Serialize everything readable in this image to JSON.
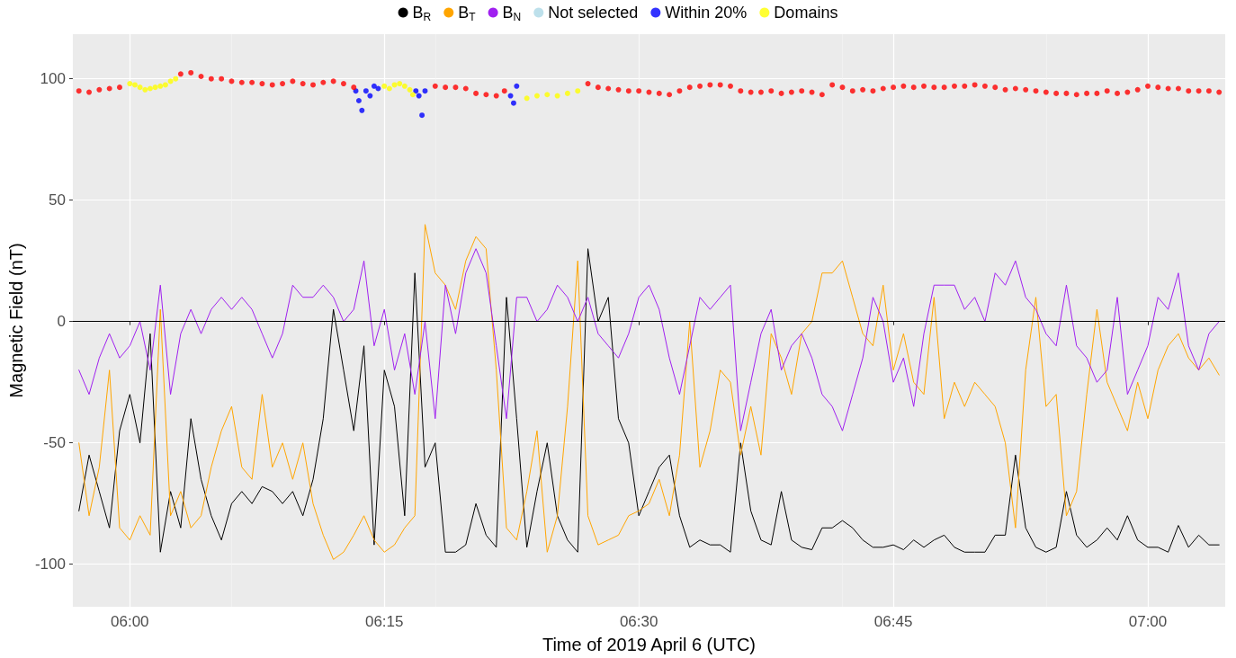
{
  "chart_data": {
    "type": "line",
    "xlabel": "Time of 2019 April 6 (UTC)",
    "ylabel": "Magnetic Field (nT)",
    "x": [
      5.95,
      5.96,
      5.97,
      5.98,
      5.99,
      6.0,
      6.01,
      6.02,
      6.03,
      6.04,
      6.05,
      6.06,
      6.07,
      6.08,
      6.09,
      6.1,
      6.11,
      6.12,
      6.13,
      6.14,
      6.15,
      6.16,
      6.17,
      6.18,
      6.19,
      6.2,
      6.21,
      6.22,
      6.23,
      6.24,
      6.25,
      6.26,
      6.27,
      6.28,
      6.29,
      6.3,
      6.31,
      6.32,
      6.33,
      6.34,
      6.35,
      6.36,
      6.37,
      6.38,
      6.39,
      6.4,
      6.41,
      6.42,
      6.43,
      6.44,
      6.45,
      6.46,
      6.47,
      6.48,
      6.49,
      6.5,
      6.51,
      6.52,
      6.53,
      6.54,
      6.55,
      6.56,
      6.57,
      6.58,
      6.59,
      6.6,
      6.61,
      6.62,
      6.63,
      6.64,
      6.65,
      6.66,
      6.67,
      6.68,
      6.69,
      6.7,
      6.71,
      6.72,
      6.73,
      6.74,
      6.75,
      6.76,
      6.77,
      6.78,
      6.79,
      6.8,
      6.81,
      6.82,
      6.83,
      6.84,
      6.85,
      6.86,
      6.87,
      6.88,
      6.89,
      6.9,
      6.91,
      6.92,
      6.93,
      6.94,
      6.95,
      6.96,
      6.97,
      6.98,
      6.99,
      7.0,
      7.01,
      7.02,
      7.03,
      7.04,
      7.05,
      7.06,
      7.07
    ],
    "series": [
      {
        "name": "B$_{R}$",
        "color": "#000000",
        "values": [
          -78,
          -55,
          -70,
          -85,
          -45,
          -30,
          -50,
          -5,
          -95,
          -70,
          -85,
          -40,
          -65,
          -80,
          -90,
          -75,
          -70,
          -75,
          -68,
          -70,
          -75,
          -70,
          -80,
          -65,
          -40,
          5,
          -20,
          -45,
          -10,
          -92,
          -20,
          -35,
          -80,
          20,
          -60,
          -50,
          -95,
          -95,
          -92,
          -75,
          -88,
          -93,
          10,
          -40,
          -93,
          -70,
          -50,
          -80,
          -90,
          -95,
          30,
          0,
          10,
          -40,
          -50,
          -80,
          -70,
          -60,
          -55,
          -80,
          -93,
          -90,
          -92,
          -92,
          -95,
          -50,
          -78,
          -90,
          -92,
          -70,
          -90,
          -93,
          -94,
          -85,
          -85,
          -82,
          -85,
          -90,
          -93,
          -93,
          -92,
          -94,
          -90,
          -93,
          -90,
          -88,
          -93,
          -95,
          -95,
          -95,
          -88,
          -88,
          -55,
          -85,
          -93,
          -95,
          -93,
          -70,
          -88,
          -93,
          -90,
          -85,
          -90,
          -80,
          -90,
          -93,
          -93,
          -95,
          -84,
          -93,
          -88,
          -92,
          -92
        ]
      },
      {
        "name": "B$_{T}$",
        "color": "#ffa500",
        "values": [
          -50,
          -80,
          -60,
          -20,
          -85,
          -90,
          -80,
          -88,
          5,
          -80,
          -70,
          -85,
          -80,
          -60,
          -45,
          -35,
          -60,
          -65,
          -30,
          -60,
          -50,
          -65,
          -50,
          -75,
          -88,
          -98,
          -95,
          -88,
          -80,
          -90,
          -95,
          -92,
          -85,
          -80,
          40,
          20,
          15,
          5,
          25,
          35,
          30,
          -20,
          -85,
          -90,
          -70,
          -45,
          -95,
          -80,
          -35,
          25,
          -80,
          -92,
          -90,
          -88,
          -80,
          -78,
          -75,
          -65,
          -80,
          -55,
          0,
          -60,
          -45,
          -20,
          -25,
          -55,
          -35,
          -55,
          -5,
          -15,
          -30,
          -5,
          0,
          20,
          20,
          25,
          10,
          -5,
          -10,
          15,
          -20,
          -5,
          -25,
          -30,
          10,
          -40,
          -25,
          -35,
          -25,
          -30,
          -35,
          -50,
          -85,
          -20,
          10,
          -35,
          -30,
          -80,
          -70,
          -30,
          5,
          -25,
          -35,
          -45,
          -25,
          -40,
          -20,
          -10,
          -5,
          -15,
          -20,
          -15,
          -22
        ]
      },
      {
        "name": "B$_{N}$",
        "color": "#a020f0",
        "values": [
          -20,
          -30,
          -15,
          -5,
          -15,
          -10,
          0,
          -20,
          15,
          -30,
          -5,
          5,
          -5,
          5,
          10,
          5,
          10,
          5,
          -5,
          -15,
          -5,
          15,
          10,
          10,
          15,
          10,
          0,
          5,
          25,
          -10,
          5,
          -20,
          -5,
          -30,
          0,
          -40,
          15,
          -5,
          20,
          30,
          20,
          -10,
          -40,
          10,
          10,
          0,
          5,
          15,
          10,
          0,
          10,
          -5,
          -10,
          -15,
          -5,
          10,
          15,
          5,
          -15,
          -30,
          -10,
          10,
          5,
          10,
          15,
          -45,
          -25,
          -5,
          5,
          -20,
          -10,
          -5,
          -15,
          -30,
          -35,
          -45,
          -30,
          -15,
          10,
          0,
          -25,
          -15,
          -35,
          -5,
          15,
          15,
          15,
          5,
          10,
          0,
          20,
          15,
          25,
          10,
          5,
          -5,
          -10,
          15,
          -10,
          -15,
          -25,
          -20,
          10,
          -30,
          -20,
          -10,
          10,
          5,
          20,
          -10,
          -20,
          -5,
          0
        ]
      },
      {
        "name": "Not selected",
        "type": "scatter",
        "marker": "circle",
        "color": "#add8e6",
        "values": [
          null,
          null,
          null,
          null,
          null,
          null,
          null,
          null,
          null,
          null,
          null,
          null,
          null,
          null,
          null,
          null,
          null,
          null,
          null,
          null,
          null,
          null,
          null,
          null,
          null,
          null,
          null,
          null,
          null,
          null,
          null,
          null,
          null,
          null,
          null,
          null,
          null,
          null,
          null,
          null,
          null,
          null,
          null,
          null,
          null,
          null,
          null,
          null,
          null,
          null,
          null,
          null,
          null,
          null,
          null,
          null,
          null,
          null,
          null,
          null,
          null,
          null,
          null,
          null,
          null,
          null,
          null,
          null,
          null,
          null,
          null,
          null,
          null,
          null,
          null,
          null,
          null,
          null,
          null,
          null,
          null,
          null,
          null,
          null,
          null,
          null,
          null,
          null,
          null,
          null,
          null,
          null,
          null,
          null,
          null,
          null,
          null,
          null,
          null,
          null,
          null,
          null,
          null,
          null,
          null,
          null,
          null,
          null,
          null,
          null,
          null,
          null,
          null
        ]
      },
      {
        "name": "Within 20%",
        "type": "scatter",
        "marker": "circle",
        "color": "#0000ff",
        "x": [
          6.222,
          6.225,
          6.228,
          6.232,
          6.236,
          6.24,
          6.244,
          6.281,
          6.284,
          6.287,
          6.29,
          6.374,
          6.377,
          6.38
        ],
        "values": [
          95,
          91,
          87,
          95,
          93,
          97,
          96,
          95,
          93,
          85,
          95,
          93,
          90,
          97
        ]
      },
      {
        "type": "scatter",
        "marker": "circle",
        "color": "#ff0000",
        "x": [
          5.95,
          5.96,
          5.97,
          5.98,
          5.99,
          6.05,
          6.06,
          6.07,
          6.08,
          6.09,
          6.1,
          6.11,
          6.12,
          6.13,
          6.14,
          6.15,
          6.16,
          6.17,
          6.18,
          6.19,
          6.2,
          6.21,
          6.22,
          6.3,
          6.31,
          6.32,
          6.33,
          6.34,
          6.35,
          6.36,
          6.368,
          6.45,
          6.46,
          6.47,
          6.48,
          6.49,
          6.5,
          6.51,
          6.52,
          6.53,
          6.54,
          6.55,
          6.56,
          6.57,
          6.58,
          6.59,
          6.6,
          6.61,
          6.62,
          6.63,
          6.64,
          6.65,
          6.66,
          6.67,
          6.68,
          6.69,
          6.7,
          6.71,
          6.72,
          6.73,
          6.74,
          6.75,
          6.76,
          6.77,
          6.78,
          6.79,
          6.8,
          6.81,
          6.82,
          6.83,
          6.84,
          6.85,
          6.86,
          6.87,
          6.88,
          6.89,
          6.9,
          6.91,
          6.92,
          6.93,
          6.94,
          6.95,
          6.96,
          6.97,
          6.98,
          6.99,
          7.0,
          7.01,
          7.02,
          7.03,
          7.04,
          7.05,
          7.06,
          7.07
        ],
        "values": [
          95,
          94.5,
          95.5,
          96,
          96.5,
          102,
          102.5,
          101,
          100,
          100,
          99,
          98.5,
          98.5,
          98,
          97.5,
          98,
          99,
          98,
          97.5,
          98.5,
          99,
          98,
          96.5,
          97,
          96.5,
          96.5,
          96,
          94,
          93.5,
          93,
          95,
          98,
          96.5,
          96,
          95.5,
          95,
          95,
          94.5,
          94,
          93.5,
          95,
          96.5,
          97,
          97.5,
          97.5,
          97,
          95,
          94.5,
          94.5,
          95,
          94,
          94.5,
          95,
          94.5,
          93.5,
          97.5,
          96.5,
          95,
          95.5,
          95,
          96,
          96.5,
          97,
          96.5,
          97,
          96.5,
          96.5,
          97,
          97,
          97.5,
          97,
          96.5,
          95.5,
          96,
          95.5,
          95,
          94.5,
          94,
          94,
          93.5,
          94,
          94,
          95,
          94,
          94.5,
          95.5,
          97,
          96.5,
          96,
          96,
          95,
          95,
          95,
          94.5
        ]
      },
      {
        "name": "Domains",
        "type": "scatter",
        "marker": "circle",
        "color": "#ffff00",
        "x": [
          6.0,
          6.005,
          6.01,
          6.015,
          6.02,
          6.025,
          6.03,
          6.035,
          6.04,
          6.045,
          6.25,
          6.255,
          6.26,
          6.265,
          6.27,
          6.275,
          6.278,
          6.39,
          6.4,
          6.41,
          6.42,
          6.43,
          6.44
        ],
        "values": [
          98,
          97.5,
          96.5,
          95.5,
          96,
          96.5,
          97,
          97.5,
          99,
          100,
          97,
          96,
          97.5,
          98,
          97,
          95.5,
          93.5,
          92,
          93,
          93.5,
          93,
          94,
          95
        ]
      }
    ],
    "marker": "none",
    "line_style": "solid",
    "xlim": [
      5.944,
      7.076
    ],
    "xticks": [
      {
        "value": 6,
        "label": "06:00"
      },
      {
        "value": 6.25,
        "label": "06:15"
      },
      {
        "value": 6.5,
        "label": "06:30"
      },
      {
        "value": 6.75,
        "label": "06:45"
      },
      {
        "value": 7,
        "label": "07:00"
      }
    ],
    "ylim": [
      -117.5,
      118.4
    ],
    "yticks": [
      -100,
      -50,
      0,
      50,
      100
    ],
    "ref_lines": [
      {
        "axis": "y",
        "value": 0,
        "color": "#000000"
      }
    ],
    "grid": true,
    "legend": "top"
  }
}
